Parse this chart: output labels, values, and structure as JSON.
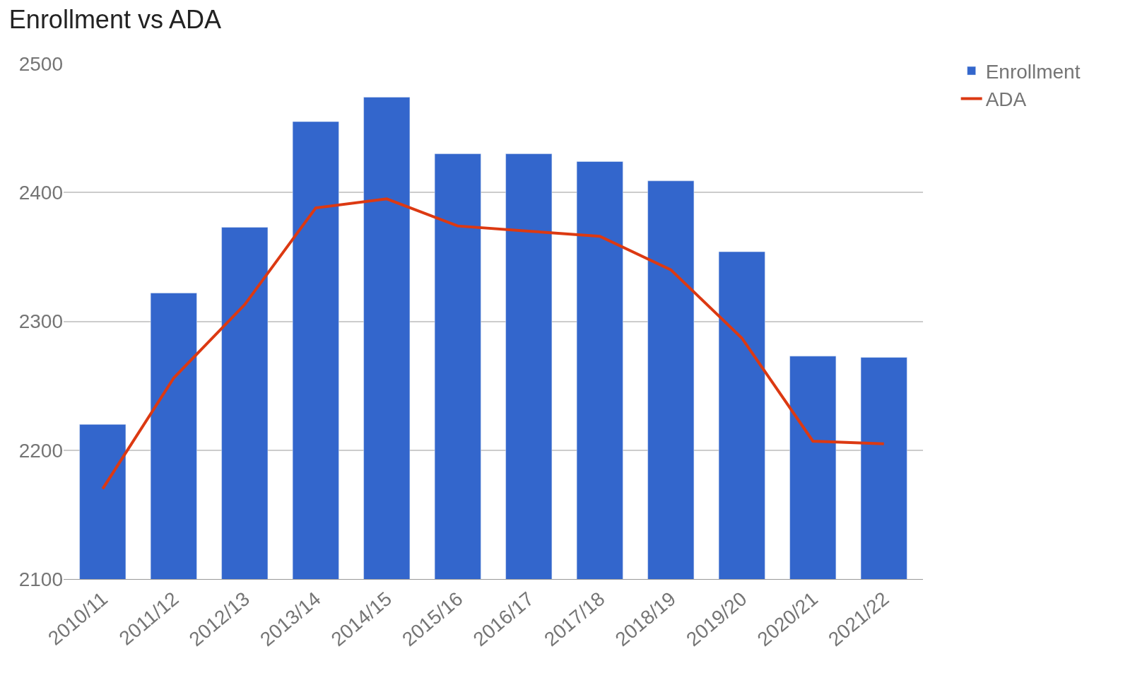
{
  "chart_data": {
    "type": "bar",
    "title": "Enrollment vs ADA",
    "categories": [
      "2010/11",
      "2011/12",
      "2012/13",
      "2013/14",
      "2014/15",
      "2015/16",
      "2016/17",
      "2017/18",
      "2018/19",
      "2019/20",
      "2020/21",
      "2021/22"
    ],
    "series": [
      {
        "name": "Enrollment",
        "color": "#3366cc",
        "values": [
          2220,
          2322,
          2373,
          2455,
          2474,
          2430,
          2430,
          2424,
          2409,
          2354,
          2273,
          2272
        ]
      },
      {
        "name": "ADA",
        "type": "line",
        "color": "#dc3912",
        "values": [
          2170,
          2256,
          2313,
          2388,
          2395,
          2374,
          2370,
          2366,
          2340,
          2287,
          2207,
          2205
        ]
      }
    ],
    "ylim": [
      2100,
      2500
    ],
    "yticks": [
      2100,
      2200,
      2300,
      2400,
      2500
    ],
    "grid": "y",
    "legend": "top right"
  }
}
